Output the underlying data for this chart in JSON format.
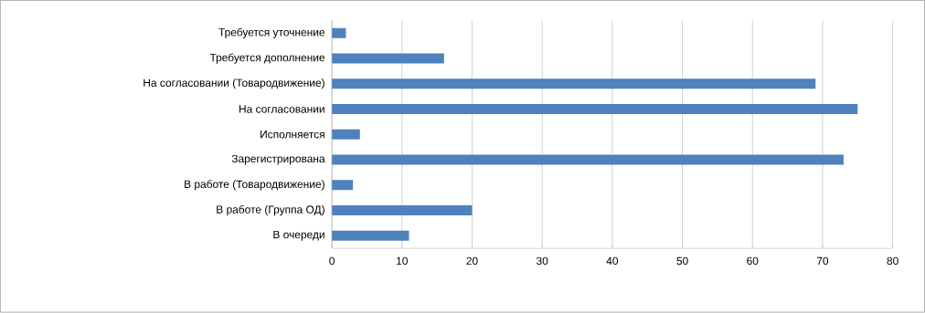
{
  "chart_data": {
    "type": "bar",
    "orientation": "horizontal",
    "categories": [
      "Требуется уточнение",
      "Требуется дополнение",
      "На согласовании (Товародвижение)",
      "На согласовании",
      "Исполняется",
      "Зарегистрирована",
      "В работе (Товародвижение)",
      "В работе (Группа ОД)",
      "В очереди"
    ],
    "values": [
      2,
      16,
      69,
      75,
      4,
      73,
      3,
      20,
      11
    ],
    "color": "#4f81bd",
    "xlim": [
      0,
      80
    ],
    "xticks": [
      0,
      10,
      20,
      30,
      40,
      50,
      60,
      70,
      80
    ],
    "grid": "x"
  }
}
